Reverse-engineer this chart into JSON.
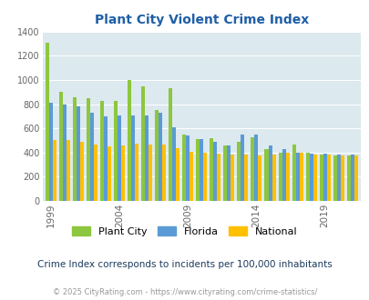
{
  "title": "Plant City Violent Crime Index",
  "subtitle": "Crime Index corresponds to incidents per 100,000 inhabitants",
  "footer": "© 2025 CityRating.com - https://www.cityrating.com/crime-statistics/",
  "years": [
    1999,
    2000,
    2001,
    2002,
    2003,
    2004,
    2005,
    2006,
    2007,
    2008,
    2009,
    2010,
    2011,
    2012,
    2013,
    2014,
    2015,
    2016,
    2017,
    2018,
    2019,
    2020,
    2021
  ],
  "plant_city": [
    1310,
    900,
    855,
    850,
    830,
    830,
    1000,
    950,
    750,
    930,
    550,
    510,
    520,
    460,
    490,
    530,
    430,
    400,
    470,
    400,
    380,
    375,
    375
  ],
  "florida": [
    810,
    800,
    780,
    730,
    700,
    710,
    710,
    710,
    730,
    610,
    545,
    515,
    490,
    460,
    550,
    550,
    460,
    430,
    400,
    390,
    390,
    385,
    380
  ],
  "national": [
    505,
    505,
    490,
    470,
    455,
    460,
    475,
    470,
    465,
    435,
    405,
    395,
    390,
    385,
    380,
    375,
    385,
    395,
    395,
    385,
    380,
    378,
    378
  ],
  "plant_city_color": "#8dc63f",
  "florida_color": "#5b9bd5",
  "national_color": "#ffc000",
  "plot_bg_color": "#dce9ef",
  "title_color": "#1f5fa6",
  "tick_label_color": "#666666",
  "subtitle_color": "#1a3a5c",
  "footer_color": "#999999",
  "ylim": [
    0,
    1400
  ],
  "yticks": [
    0,
    200,
    400,
    600,
    800,
    1000,
    1200,
    1400
  ],
  "xtick_years": [
    1999,
    2004,
    2009,
    2014,
    2019
  ],
  "legend_labels": [
    "Plant City",
    "Florida",
    "National"
  ]
}
